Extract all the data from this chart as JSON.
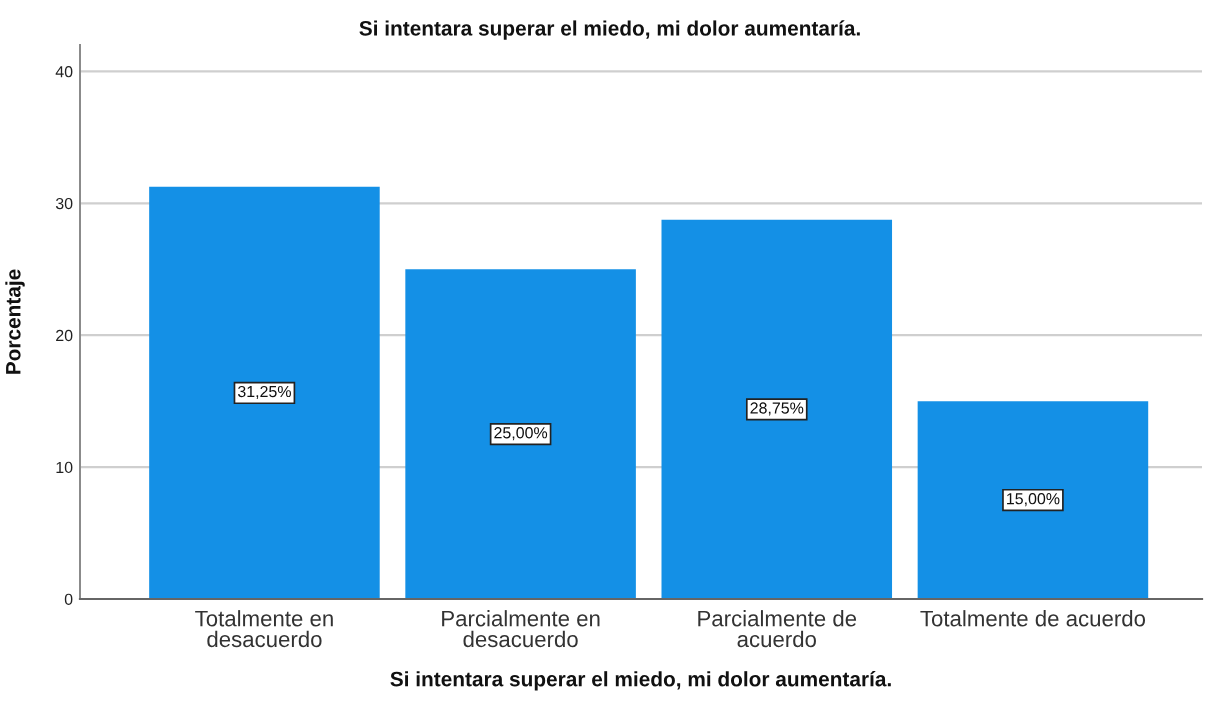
{
  "chart_data": {
    "type": "bar",
    "title": "Si intentara superar el miedo, mi dolor aumentaría.",
    "xlabel": "Si intentara superar el miedo, mi dolor aumentaría.",
    "ylabel": "Porcentaje",
    "categories": [
      "Totalmente en\ndesacuerdo",
      "Parcialmente en\ndesacuerdo",
      "Parcialmente de\nacuerdo",
      "Totalmente de acuerdo"
    ],
    "values": [
      31.25,
      25.0,
      28.75,
      15.0
    ],
    "value_labels": [
      "31,25%",
      "25,00%",
      "28,75%",
      "15,00%"
    ],
    "color": "#1490e6",
    "ylim": [
      0,
      42
    ],
    "yticks": [
      0,
      10,
      20,
      30,
      40
    ],
    "grid": "y"
  }
}
